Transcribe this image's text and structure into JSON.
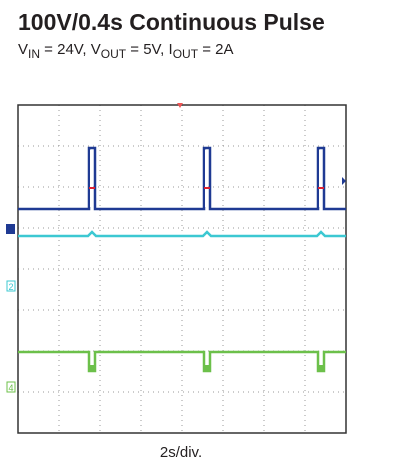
{
  "header": {
    "title": "100V/0.4s Continuous Pulse",
    "subtitle": [
      "V",
      "IN",
      " = 24V, V",
      "OUT",
      " = 5V, I",
      "OUT",
      " = 2A"
    ]
  },
  "scope": {
    "channel_markers": [
      "2",
      "4"
    ],
    "x_label": "2s/div."
  }
}
